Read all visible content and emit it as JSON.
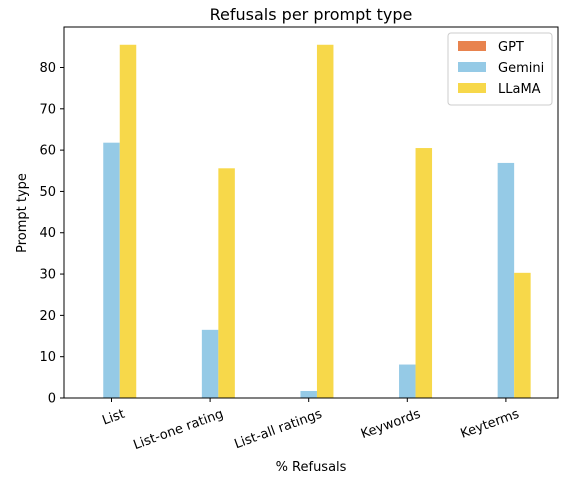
{
  "chart_data": {
    "type": "bar",
    "title": "Refusals per prompt type",
    "xlabel": "% Refusals",
    "ylabel": "Prompt type",
    "categories": [
      "List",
      "List-one rating",
      "List-all ratings",
      "Keywords",
      "Keyterms"
    ],
    "series": [
      {
        "name": "GPT",
        "color": "#e8834e",
        "values": [
          0,
          0,
          0,
          0,
          0
        ]
      },
      {
        "name": "Gemini",
        "color": "#95cae6",
        "values": [
          61.8,
          16.5,
          1.7,
          8.1,
          56.9
        ]
      },
      {
        "name": "LLaMA",
        "color": "#f7d84a",
        "values": [
          85.5,
          55.6,
          85.5,
          60.5,
          30.3
        ]
      }
    ],
    "ylim": [
      0,
      89.8
    ],
    "yticks": [
      0,
      10,
      20,
      30,
      40,
      50,
      60,
      70,
      80
    ],
    "grid": false,
    "legend_position": "top-right",
    "xtick_rotation": -20
  }
}
